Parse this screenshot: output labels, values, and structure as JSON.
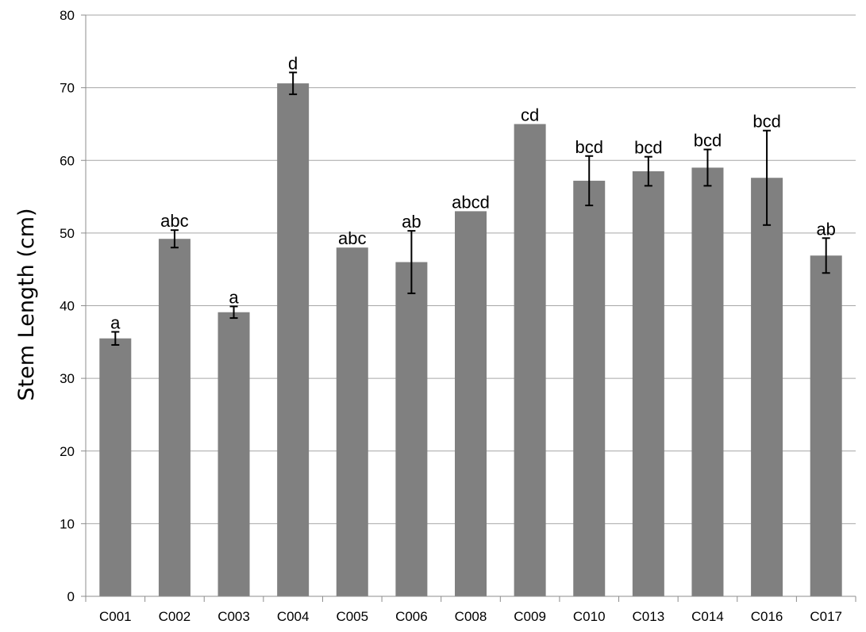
{
  "chart_data": {
    "type": "bar",
    "title": "",
    "xlabel": "",
    "ylabel": "Stem Length (cm)",
    "ylim": [
      0,
      80
    ],
    "yticks": [
      0,
      10,
      20,
      30,
      40,
      50,
      60,
      70,
      80
    ],
    "grid": true,
    "legend": "none",
    "categories": [
      "C001",
      "C002",
      "C003",
      "C004",
      "C005",
      "C006",
      "C008",
      "C009",
      "C010",
      "C013",
      "C014",
      "C016",
      "C017"
    ],
    "values": [
      35.5,
      49.2,
      39.1,
      70.6,
      48.0,
      46.0,
      53.0,
      65.0,
      57.2,
      58.5,
      59.0,
      57.6,
      46.9
    ],
    "error": [
      0.9,
      1.2,
      0.8,
      1.5,
      null,
      4.3,
      null,
      null,
      3.4,
      2.0,
      2.5,
      6.5,
      2.4
    ],
    "significance_letters": [
      "a",
      "abc",
      "a",
      "d",
      "abc",
      "ab",
      "abcd",
      "cd",
      "bcd",
      "bcd",
      "bcd",
      "bcd",
      "ab"
    ],
    "colors": {
      "bar": "#808080",
      "grid": "#a6a6a6",
      "axis": "#8c8c8c",
      "error_bar": "#000000"
    }
  }
}
